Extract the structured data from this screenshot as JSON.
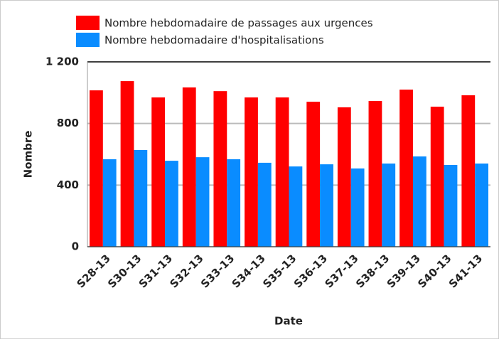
{
  "chart_data": {
    "type": "bar",
    "categories": [
      "S28-13",
      "S30-13",
      "S31-13",
      "S32-13",
      "S33-13",
      "S34-13",
      "S35-13",
      "S36-13",
      "S37-13",
      "S38-13",
      "S39-13",
      "S40-13",
      "S41-13"
    ],
    "series": [
      {
        "name": "Nombre hebdomadaire de passages aux urgences",
        "color": "#ff0000",
        "values": [
          1015,
          1075,
          969,
          1034,
          1010,
          969,
          969,
          941,
          905,
          946,
          1020,
          909,
          983
        ]
      },
      {
        "name": "Nombre hebdomadaire d'hospitalisations",
        "color": "#0a8cff",
        "values": [
          568,
          628,
          558,
          581,
          568,
          545,
          521,
          535,
          508,
          540,
          586,
          531,
          540
        ]
      }
    ],
    "ylim": [
      0,
      1200
    ],
    "yticks": [
      0,
      400,
      800,
      {
        "value": 1200,
        "label": "1 200"
      }
    ],
    "y_label": "Nombre",
    "x_label": "Date",
    "grid": true,
    "legend": "top"
  }
}
